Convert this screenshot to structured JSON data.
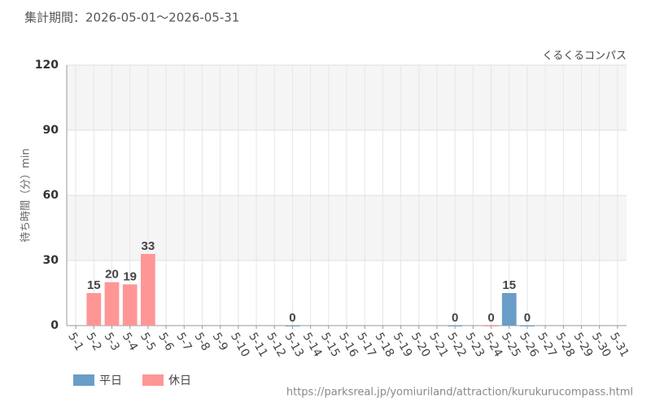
{
  "chart_data": {
    "type": "bar",
    "period": "集計期間：2026-05-01～2026-05-31",
    "title": "くるくるコンパス",
    "y_label": "待ち時間（分）min",
    "source": "https://parksreal.jp/yomiuriland/attraction/kurukurucompass.html",
    "categories": [
      "5-1",
      "5-2",
      "5-3",
      "5-4",
      "5-5",
      "5-6",
      "5-7",
      "5-8",
      "5-9",
      "5-10",
      "5-11",
      "5-12",
      "5-13",
      "5-14",
      "5-15",
      "5-16",
      "5-17",
      "5-18",
      "5-19",
      "5-20",
      "5-21",
      "5-22",
      "5-23",
      "5-24",
      "5-25",
      "5-26",
      "5-27",
      "5-28",
      "5-29",
      "5-30",
      "5-31"
    ],
    "category_colors": [
      "#333",
      "#f08080",
      "#f08080",
      "#f08080",
      "#f08080",
      "#f08080",
      "#333",
      "#333",
      "#f08080",
      "#f08080",
      "#333",
      "#333",
      "#333",
      "#333",
      "#333",
      "#f08080",
      "#f08080",
      "#333",
      "#333",
      "#333",
      "#333",
      "#333",
      "#f08080",
      "#f08080",
      "#333",
      "#333",
      "#333",
      "#333",
      "#333",
      "#f08080",
      "#f08080"
    ],
    "series": [
      {
        "name": "平日",
        "color": "#6a9ec8",
        "label_color": "#5b8db8",
        "values": [
          null,
          null,
          null,
          null,
          null,
          null,
          null,
          null,
          null,
          null,
          null,
          null,
          0,
          null,
          null,
          null,
          null,
          null,
          null,
          null,
          null,
          0,
          null,
          null,
          15,
          0,
          null,
          null,
          null,
          null,
          null
        ]
      },
      {
        "name": "休日",
        "color": "#ff9696",
        "label_color": "#f08080",
        "values": [
          null,
          15,
          20,
          19,
          33,
          null,
          null,
          null,
          null,
          null,
          null,
          null,
          null,
          null,
          null,
          null,
          null,
          null,
          null,
          null,
          null,
          null,
          null,
          0,
          null,
          null,
          null,
          null,
          null,
          null,
          null
        ]
      }
    ],
    "ylim": [
      0,
      120
    ],
    "yticks": [
      0,
      30,
      60,
      90,
      120
    ],
    "grid": true
  }
}
